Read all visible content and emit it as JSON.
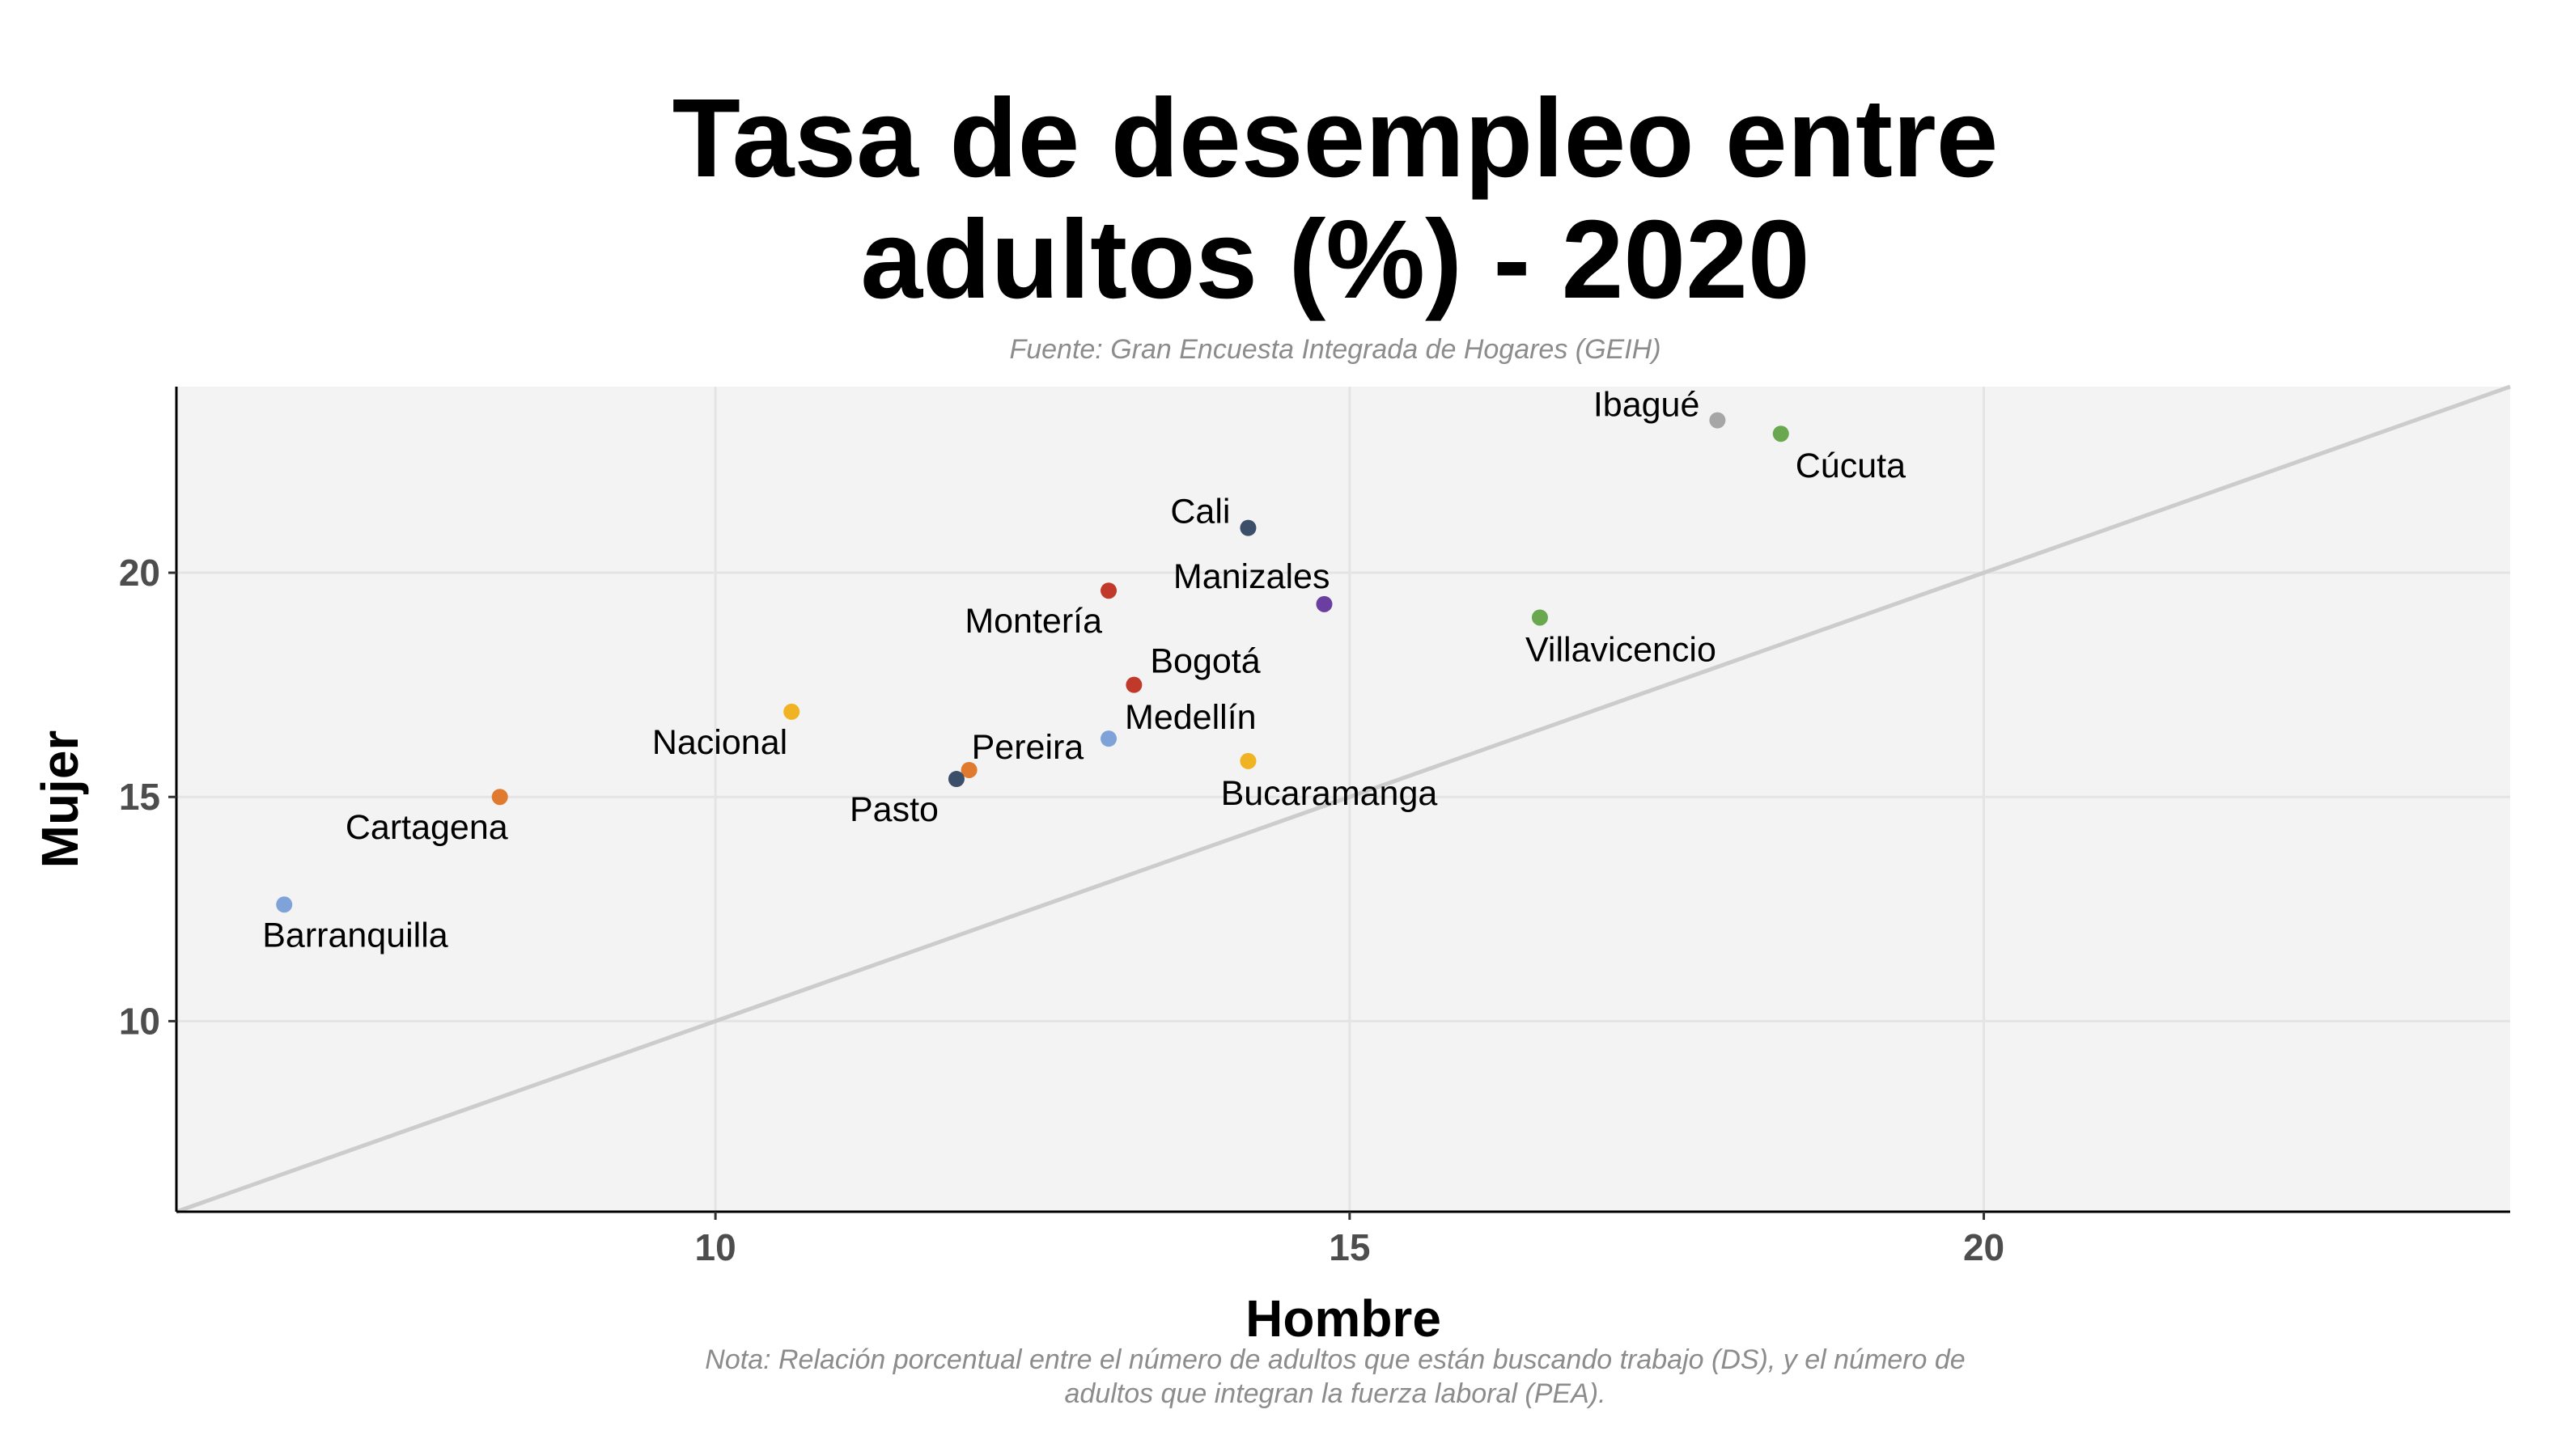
{
  "chart_data": {
    "type": "scatter",
    "title_lines": [
      "Tasa de desempleo entre",
      "adultos (%) - 2020"
    ],
    "subtitle": "Fuente: Gran Encuesta Integrada de Hogares (GEIH)",
    "xlabel": "Hombre",
    "ylabel": "Mujer",
    "xlim": [
      5.75,
      24.15
    ],
    "ylim": [
      5.75,
      24.15
    ],
    "xticks": [
      10,
      15,
      20
    ],
    "yticks": [
      10,
      15,
      20
    ],
    "grid": true,
    "reference_line": "y = x",
    "note_lines": [
      "Nota: Relación porcentual entre el número de adultos que están buscando trabajo (DS), y el número de",
      "adultos que integran la fuerza laboral (PEA)."
    ],
    "points": [
      {
        "label": "Ibagué",
        "x": 17.9,
        "y": 23.4,
        "color": "#a6a6a6",
        "anchor": "end",
        "dx": -22,
        "dy": -5
      },
      {
        "label": "Cúcuta",
        "x": 18.4,
        "y": 23.1,
        "color": "#6aa84f",
        "anchor": "start",
        "dx": 18,
        "dy": 54
      },
      {
        "label": "Cali",
        "x": 14.2,
        "y": 21.0,
        "color": "#3b4f6b",
        "anchor": "end",
        "dx": -22,
        "dy": -6
      },
      {
        "label": "Montería",
        "x": 13.1,
        "y": 19.6,
        "color": "#c0392b",
        "anchor": "end",
        "dx": -8,
        "dy": 52
      },
      {
        "label": "Manizales",
        "x": 14.8,
        "y": 19.3,
        "color": "#6b3fa0",
        "anchor": "end",
        "dx": 7,
        "dy": -20
      },
      {
        "label": "Villavicencio",
        "x": 16.5,
        "y": 19.0,
        "color": "#6aa84f",
        "anchor": "middle",
        "dx": 100,
        "dy": 54
      },
      {
        "label": "Bogotá",
        "x": 13.3,
        "y": 17.5,
        "color": "#c0392b",
        "anchor": "start",
        "dx": 20,
        "dy": -15
      },
      {
        "label": "Nacional",
        "x": 10.6,
        "y": 16.9,
        "color": "#f0b323",
        "anchor": "end",
        "dx": -5,
        "dy": 52
      },
      {
        "label": "Medellín",
        "x": 13.1,
        "y": 16.3,
        "color": "#7fa3d8",
        "anchor": "start",
        "dx": 20,
        "dy": -12
      },
      {
        "label": "Bucaramanga",
        "x": 14.2,
        "y": 15.8,
        "color": "#f0b323",
        "anchor": "middle",
        "dx": 100,
        "dy": 54
      },
      {
        "label": "Pereira",
        "x": 12.0,
        "y": 15.6,
        "color": "#e07a2e",
        "anchor": "start",
        "dx": 3,
        "dy": -14
      },
      {
        "label": "Pasto",
        "x": 11.9,
        "y": 15.4,
        "color": "#3b4f6b",
        "anchor": "end",
        "dx": -22,
        "dy": 52
      },
      {
        "label": "Cartagena",
        "x": 8.3,
        "y": 15.0,
        "color": "#e07a2e",
        "anchor": "end",
        "dx": 10,
        "dy": 52
      },
      {
        "label": "Barranquilla",
        "x": 6.6,
        "y": 12.6,
        "color": "#7fa3d8",
        "anchor": "start",
        "dx": -27,
        "dy": 52
      }
    ]
  }
}
